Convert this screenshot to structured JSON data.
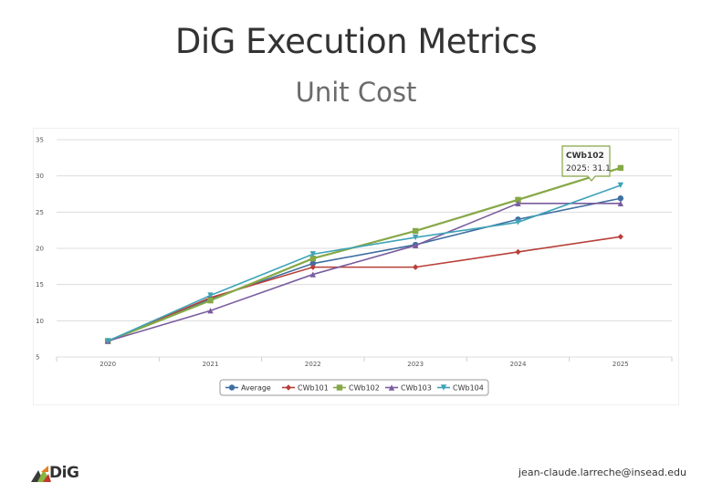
{
  "header": {
    "title": "DiG Execution Metrics",
    "subtitle": "Unit Cost"
  },
  "footer": {
    "logo_text": "DiG",
    "email": "jean-claude.larreche@insead.edu"
  },
  "chart_data": {
    "type": "line",
    "title": "Unit Cost",
    "xlabel": "",
    "ylabel": "",
    "categories": [
      "2020",
      "2021",
      "2022",
      "2023",
      "2024",
      "2025"
    ],
    "ylim": [
      5,
      35
    ],
    "yticks": [
      "5",
      "10",
      "15",
      "20",
      "25",
      "30",
      "35"
    ],
    "grid": true,
    "legend": "bottom-center",
    "series": [
      {
        "name": "Average",
        "color": "#3f6fa0",
        "marker": "circle",
        "values": [
          7.2,
          13.0,
          17.9,
          20.5,
          24.0,
          26.9
        ]
      },
      {
        "name": "CWb101",
        "color": "#b8403a",
        "marker": "diamond",
        "values": [
          7.2,
          13.2,
          17.4,
          17.4,
          19.5,
          21.6
        ]
      },
      {
        "name": "CWb102",
        "color": "#86a846",
        "marker": "square",
        "values": [
          7.2,
          12.8,
          18.6,
          22.4,
          26.7,
          31.1
        ]
      },
      {
        "name": "CWb103",
        "color": "#7a5d9e",
        "marker": "triangle",
        "values": [
          7.2,
          11.4,
          16.4,
          20.4,
          26.2,
          26.2
        ]
      },
      {
        "name": "CWb104",
        "color": "#3fa3b8",
        "marker": "triangle-down",
        "values": [
          7.2,
          13.5,
          19.2,
          21.5,
          23.6,
          28.7
        ]
      }
    ],
    "tooltip": {
      "series": "CWb102",
      "line1": "CWb102",
      "line2": "2025: 31.1"
    }
  }
}
